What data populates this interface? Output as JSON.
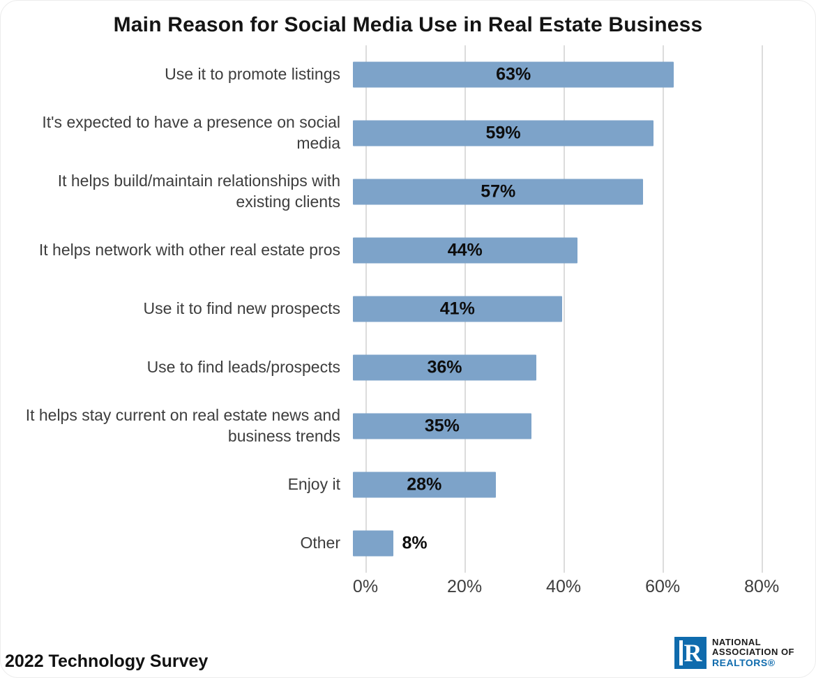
{
  "title": "Main Reason for Social Media Use in Real Estate Business",
  "footnote": "2022 Technology Survey",
  "logo": {
    "mark": "R",
    "line1": "NATIONAL",
    "line2": "ASSOCIATION OF",
    "line3": "REALTORS®",
    "blue": "#0f6bad"
  },
  "chart_data": {
    "type": "bar",
    "orientation": "horizontal",
    "title": "Main Reason for Social Media Use in Real Estate Business",
    "categories": [
      "Use it to promote listings",
      "It's expected to have a presence on social media",
      "It helps build/maintain relationships with existing clients",
      "It helps network with other real estate pros",
      "Use it to find new prospects",
      "Use to find leads/prospects",
      "It helps stay current on real estate news and business trends",
      "Enjoy it",
      "Other"
    ],
    "values": [
      63,
      59,
      57,
      44,
      41,
      36,
      35,
      28,
      8
    ],
    "value_labels": [
      "63%",
      "59%",
      "57%",
      "44%",
      "41%",
      "36%",
      "35%",
      "28%",
      "8%"
    ],
    "x_ticks": [
      "0%",
      "20%",
      "40%",
      "60%",
      "80%"
    ],
    "x_tick_values": [
      0,
      20,
      40,
      60,
      80
    ],
    "xlim": [
      0,
      88
    ],
    "bar_color": "#7da3c9",
    "grid": true,
    "legend": "none"
  }
}
